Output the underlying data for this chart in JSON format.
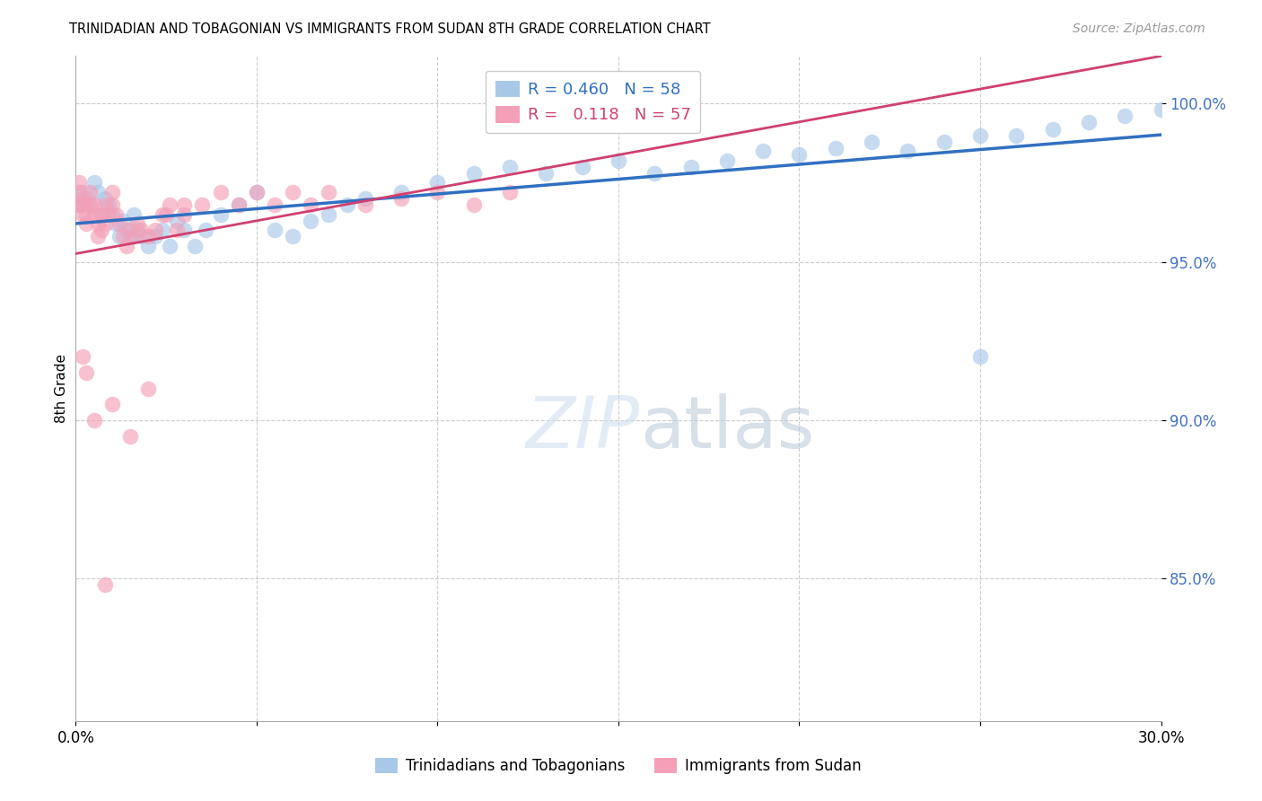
{
  "title": "TRINIDADIAN AND TOBAGONIAN VS IMMIGRANTS FROM SUDAN 8TH GRADE CORRELATION CHART",
  "source": "Source: ZipAtlas.com",
  "ylabel": "8th Grade",
  "ytick_labels": [
    "100.0%",
    "95.0%",
    "90.0%",
    "85.0%"
  ],
  "ytick_values": [
    1.0,
    0.95,
    0.9,
    0.85
  ],
  "xlim": [
    0.0,
    0.3
  ],
  "ylim": [
    0.805,
    1.015
  ],
  "legend_line1": "R = 0.460   N = 58",
  "legend_line2": "R =   0.118   N = 57",
  "blue_color": "#a8c8e8",
  "pink_color": "#f4a0b8",
  "blue_line_color": "#3070c0",
  "pink_line_color": "#d04070",
  "legend_blue_text_color": "#3070c0",
  "legend_pink_text_color": "#d04070",
  "blue_scatter_x": [
    0.001,
    0.002,
    0.003,
    0.004,
    0.005,
    0.006,
    0.007,
    0.008,
    0.009,
    0.01,
    0.011,
    0.012,
    0.013,
    0.014,
    0.015,
    0.016,
    0.017,
    0.018,
    0.02,
    0.022,
    0.024,
    0.026,
    0.028,
    0.03,
    0.033,
    0.036,
    0.04,
    0.045,
    0.05,
    0.055,
    0.06,
    0.065,
    0.07,
    0.075,
    0.08,
    0.09,
    0.1,
    0.11,
    0.12,
    0.13,
    0.14,
    0.15,
    0.16,
    0.17,
    0.18,
    0.19,
    0.2,
    0.21,
    0.22,
    0.23,
    0.24,
    0.25,
    0.26,
    0.27,
    0.28,
    0.29,
    0.3,
    0.25
  ],
  "blue_scatter_y": [
    0.968,
    0.972,
    0.97,
    0.968,
    0.975,
    0.972,
    0.965,
    0.97,
    0.968,
    0.965,
    0.962,
    0.958,
    0.963,
    0.96,
    0.958,
    0.965,
    0.96,
    0.958,
    0.955,
    0.958,
    0.96,
    0.955,
    0.963,
    0.96,
    0.955,
    0.96,
    0.965,
    0.968,
    0.972,
    0.96,
    0.958,
    0.963,
    0.965,
    0.968,
    0.97,
    0.972,
    0.975,
    0.978,
    0.98,
    0.978,
    0.98,
    0.982,
    0.978,
    0.98,
    0.982,
    0.985,
    0.984,
    0.986,
    0.988,
    0.985,
    0.988,
    0.99,
    0.99,
    0.992,
    0.994,
    0.996,
    0.998,
    0.92
  ],
  "pink_scatter_x": [
    0.001,
    0.001,
    0.001,
    0.002,
    0.002,
    0.002,
    0.003,
    0.003,
    0.004,
    0.004,
    0.005,
    0.005,
    0.006,
    0.006,
    0.007,
    0.007,
    0.008,
    0.008,
    0.009,
    0.01,
    0.01,
    0.011,
    0.012,
    0.013,
    0.014,
    0.015,
    0.016,
    0.017,
    0.018,
    0.02,
    0.022,
    0.024,
    0.026,
    0.028,
    0.03,
    0.035,
    0.04,
    0.045,
    0.05,
    0.055,
    0.06,
    0.065,
    0.07,
    0.08,
    0.09,
    0.1,
    0.11,
    0.12,
    0.025,
    0.03,
    0.002,
    0.003,
    0.005,
    0.01,
    0.015,
    0.02,
    0.008
  ],
  "pink_scatter_y": [
    0.975,
    0.972,
    0.968,
    0.97,
    0.965,
    0.968,
    0.965,
    0.962,
    0.968,
    0.972,
    0.968,
    0.965,
    0.962,
    0.958,
    0.96,
    0.965,
    0.962,
    0.968,
    0.965,
    0.968,
    0.972,
    0.965,
    0.962,
    0.958,
    0.955,
    0.96,
    0.958,
    0.962,
    0.96,
    0.958,
    0.96,
    0.965,
    0.968,
    0.96,
    0.965,
    0.968,
    0.972,
    0.968,
    0.972,
    0.968,
    0.972,
    0.968,
    0.972,
    0.968,
    0.97,
    0.972,
    0.968,
    0.972,
    0.965,
    0.968,
    0.92,
    0.915,
    0.9,
    0.905,
    0.895,
    0.91,
    0.848
  ]
}
